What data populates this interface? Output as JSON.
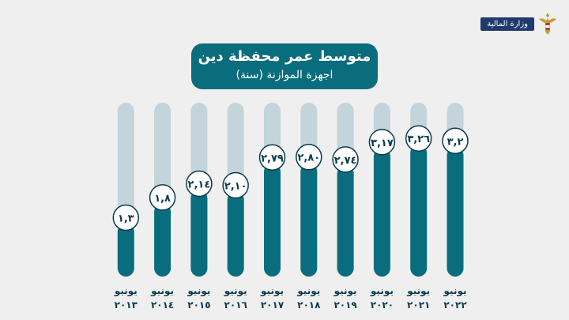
{
  "header": {
    "ministry_label": "وزارة المالية",
    "logo_icon": "eagle-emblem-icon"
  },
  "chart_data": {
    "type": "bar",
    "title": "متوسط عمر محفظة دين",
    "subtitle": "اجهزة الموازنة (سنة)",
    "xlabel": "",
    "ylabel": "",
    "categories": [
      "2022",
      "2021",
      "2020",
      "2019",
      "2018",
      "2017",
      "2016",
      "2015",
      "2014",
      "2013"
    ],
    "category_labels": [
      [
        "يونيو",
        "٢٠٢٢"
      ],
      [
        "يونيو",
        "٢٠٢١"
      ],
      [
        "يونيو",
        "٢٠٢٠"
      ],
      [
        "يونيو",
        "٢٠١٩"
      ],
      [
        "يونيو",
        "٢٠١٨"
      ],
      [
        "يونيو",
        "٢٠١٧"
      ],
      [
        "يونيو",
        "٢٠١٦"
      ],
      [
        "يونيو",
        "٢٠١٥"
      ],
      [
        "يونيو",
        "٢٠١٤"
      ],
      [
        "يونيو",
        "٢٠١٣"
      ]
    ],
    "values": [
      3.2,
      3.26,
      3.17,
      2.74,
      2.8,
      2.79,
      2.1,
      2.14,
      1.8,
      1.3
    ],
    "value_labels": [
      "٣,٢",
      "٣,٢٦",
      "٣,١٧",
      "٢,٧٤",
      "٢,٨٠",
      "٢,٧٩",
      "٢,١٠",
      "٢,١٤",
      "١,٨",
      "١,٣"
    ],
    "ylim": [
      0,
      4.3
    ],
    "grid": false,
    "legend": "none",
    "colors": {
      "bar": "#0a6d7d",
      "track": "#c3d4da",
      "label_border": "#0b3a4a"
    }
  }
}
